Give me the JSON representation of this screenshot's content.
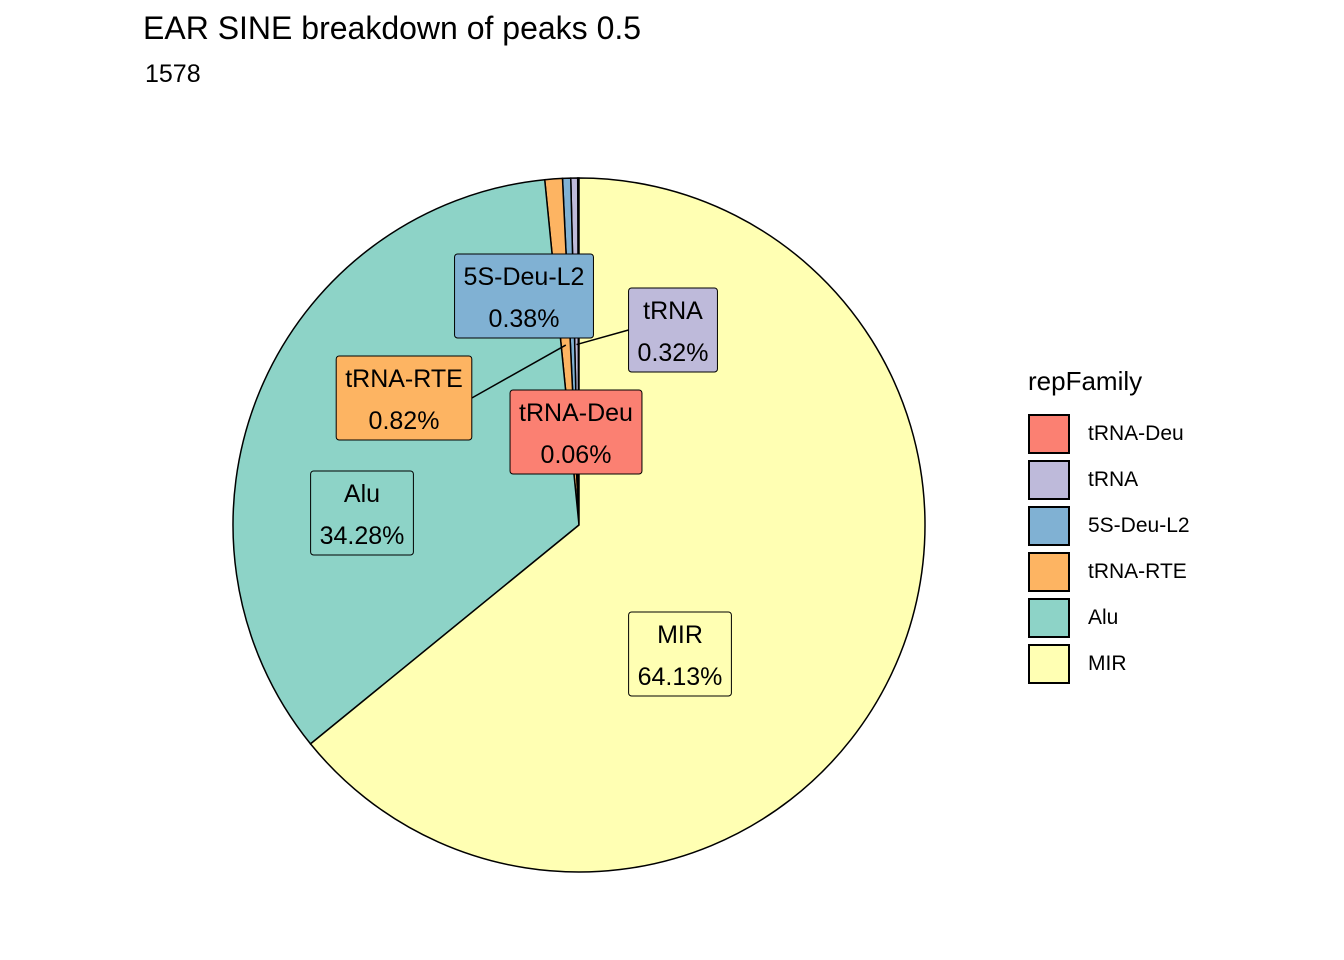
{
  "chart_data": {
    "type": "pie",
    "title": "EAR SINE breakdown of peaks 0.5",
    "subtitle": "1578",
    "legend_title": "repFamily",
    "legend_position": "right",
    "slices": [
      {
        "name": "tRNA-Deu",
        "value": 0.06,
        "label": "0.06%",
        "color": "#FB8072"
      },
      {
        "name": "tRNA",
        "value": 0.32,
        "label": "0.32%",
        "color": "#BEBADA"
      },
      {
        "name": "5S-Deu-L2",
        "value": 0.38,
        "label": "0.38%",
        "color": "#80B1D3"
      },
      {
        "name": "tRNA-RTE",
        "value": 0.82,
        "label": "0.82%",
        "color": "#FDB462"
      },
      {
        "name": "Alu",
        "value": 34.28,
        "label": "34.28%",
        "color": "#8DD3C7"
      },
      {
        "name": "MIR",
        "value": 64.13,
        "label": "64.13%",
        "color": "#FFFFB3"
      }
    ]
  }
}
